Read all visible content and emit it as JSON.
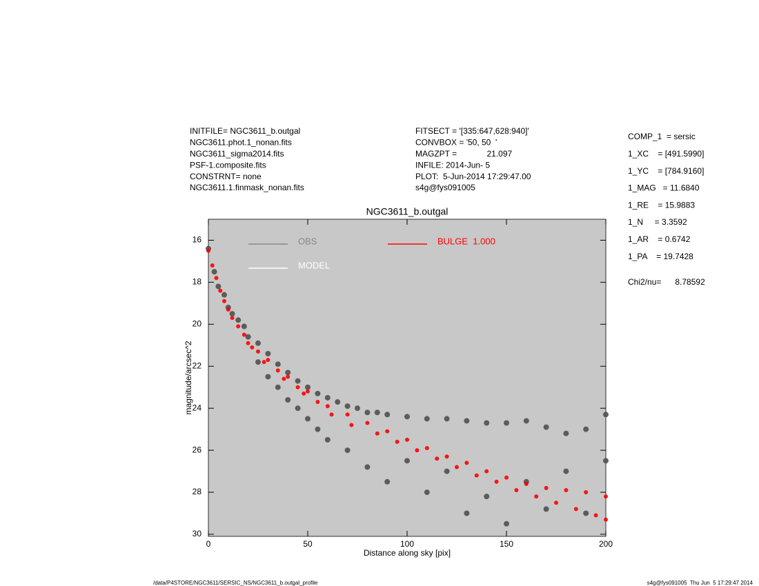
{
  "chart_data": {
    "type": "scatter",
    "title": "NGC3611_b.outgal",
    "header_left": [
      "INITFILE= NGC3611_b.outgal",
      "NGC3611.phot.1_nonan.fits",
      "NGC3611_sigma2014.fits",
      "PSF-1.composite.fits",
      "CONSTRNT= none",
      "NGC3611.1.finmask_nonan.fits"
    ],
    "header_middle": [
      "FITSECT = '[335:647,628:940]'",
      "CONVBOX = '50, 50  '",
      "MAGZPT =             21.097",
      "INFILE: 2014-Jun- 5",
      "PLOT:  5-Jun-2014 17:29:47.00",
      "s4g@fys091005"
    ],
    "params": [
      "COMP_1  = sersic",
      "1_XC    = [491.5990]",
      "1_YC    = [784.9160]",
      "1_MAG   = 11.6840",
      "1_RE    = 15.9883",
      "1_N     = 3.3592",
      "1_AR    = 0.6742",
      "1_PA    = 19.7428"
    ],
    "chi2": "Chi2/nu=      8.78592",
    "footer_left": "/data/P4STORE/NGC3611/SERSIC_NS/NGC3611_b.outgal_profile",
    "footer_right": "s4g@fys091005  Thu Jun  5 17:29:47 2014",
    "x_label": "Distance along sky [pix]",
    "y_label": "magnitude/arcsec^2",
    "xlim": [
      0,
      200
    ],
    "ylim": [
      15,
      30.1
    ],
    "y_inverted": true,
    "xticks": [
      0,
      50,
      100,
      150,
      200
    ],
    "yticks": [
      16,
      18,
      20,
      22,
      24,
      26,
      28,
      30
    ],
    "background": "#c8c8c8",
    "series": [
      {
        "name": "OBS",
        "color": "#505050",
        "x": [
          0,
          3,
          5,
          8,
          10,
          12,
          15,
          18,
          20,
          25,
          25,
          30,
          30,
          35,
          35,
          40,
          40,
          45,
          45,
          50,
          50,
          55,
          55,
          60,
          60,
          65,
          70,
          70,
          75,
          80,
          80,
          85,
          90,
          90,
          100,
          100,
          110,
          110,
          120,
          120,
          130,
          130,
          140,
          140,
          150,
          150,
          160,
          160,
          170,
          170,
          180,
          180,
          190,
          190,
          200,
          200
        ],
        "y": [
          16.4,
          17.5,
          18.2,
          18.6,
          19.2,
          19.5,
          19.8,
          20.1,
          20.6,
          20.9,
          21.8,
          21.4,
          22.5,
          21.9,
          23.0,
          22.3,
          23.6,
          22.7,
          24.0,
          23.0,
          24.5,
          23.3,
          25.0,
          23.5,
          25.5,
          23.7,
          23.9,
          26.0,
          24.0,
          24.2,
          26.8,
          24.2,
          24.3,
          27.5,
          24.4,
          26.5,
          24.5,
          28.0,
          24.5,
          27.0,
          24.6,
          29.0,
          24.7,
          28.2,
          24.7,
          29.5,
          24.6,
          27.5,
          24.9,
          28.8,
          25.2,
          27.0,
          25.0,
          29.0,
          24.3,
          26.5
        ]
      },
      {
        "name": "MODEL",
        "color": "#ffffff",
        "x": [],
        "y": []
      },
      {
        "name": "BULGE  1.000",
        "color": "#ff0000",
        "x": [
          0,
          2,
          4,
          6,
          8,
          10,
          12,
          15,
          18,
          20,
          22,
          25,
          28,
          30,
          35,
          38,
          40,
          45,
          48,
          50,
          55,
          60,
          62,
          70,
          72,
          80,
          85,
          90,
          95,
          100,
          105,
          110,
          115,
          120,
          125,
          130,
          135,
          140,
          145,
          150,
          155,
          160,
          165,
          170,
          175,
          180,
          185,
          190,
          195,
          200,
          200
        ],
        "y": [
          16.5,
          17.2,
          17.8,
          18.4,
          18.9,
          19.3,
          19.7,
          20.1,
          20.5,
          20.9,
          21.1,
          21.3,
          21.8,
          21.7,
          22.2,
          22.6,
          22.5,
          23.0,
          23.3,
          23.2,
          23.7,
          23.9,
          24.3,
          24.3,
          24.8,
          24.7,
          25.2,
          25.1,
          25.6,
          25.5,
          26.0,
          25.9,
          26.4,
          26.3,
          26.8,
          26.6,
          27.2,
          27.0,
          27.5,
          27.3,
          27.9,
          27.6,
          28.2,
          27.8,
          28.5,
          27.9,
          28.8,
          28.0,
          29.1,
          28.2,
          29.3
        ]
      }
    ]
  }
}
